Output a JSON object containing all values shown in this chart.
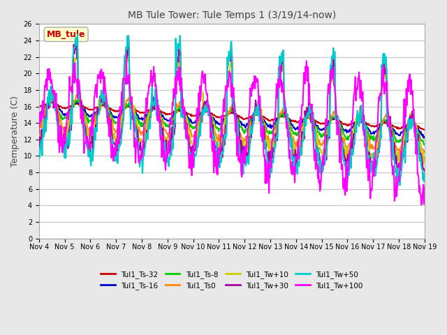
{
  "title": "MB Tule Tower: Tule Temps 1 (3/19/14-now)",
  "ylabel": "Temperature (C)",
  "ylim": [
    0,
    26
  ],
  "yticks": [
    0,
    2,
    4,
    6,
    8,
    10,
    12,
    14,
    16,
    18,
    20,
    22,
    24,
    26
  ],
  "x_labels": [
    "Nov 4",
    "Nov 5",
    "Nov 6",
    "Nov 7",
    "Nov 8",
    "Nov 9",
    "Nov 10",
    "Nov 11",
    "Nov 12",
    "Nov 13",
    "Nov 14",
    "Nov 15",
    "Nov 16",
    "Nov 17",
    "Nov 18",
    "Nov 19"
  ],
  "annotation_box": "MB_tule",
  "annotation_color": "#cc0000",
  "background_color": "#e8e8e8",
  "plot_background": "#ffffff",
  "grid_color": "#cccccc",
  "series": [
    {
      "label": "Tul1_Ts-32",
      "color": "#cc0000",
      "lw": 1.5
    },
    {
      "label": "Tul1_Ts-16",
      "color": "#0000cc",
      "lw": 1.5
    },
    {
      "label": "Tul1_Ts-8",
      "color": "#00cc00",
      "lw": 1.5
    },
    {
      "label": "Tul1_Ts0",
      "color": "#ff8800",
      "lw": 1.5
    },
    {
      "label": "Tul1_Tw+10",
      "color": "#cccc00",
      "lw": 1.5
    },
    {
      "label": "Tul1_Tw+30",
      "color": "#aa00aa",
      "lw": 1.5
    },
    {
      "label": "Tul1_Tw+50",
      "color": "#00cccc",
      "lw": 1.5
    },
    {
      "label": "Tul1_Tw+100",
      "color": "#ff00ff",
      "lw": 1.5
    }
  ],
  "n_days": 15,
  "points_per_day": 48
}
